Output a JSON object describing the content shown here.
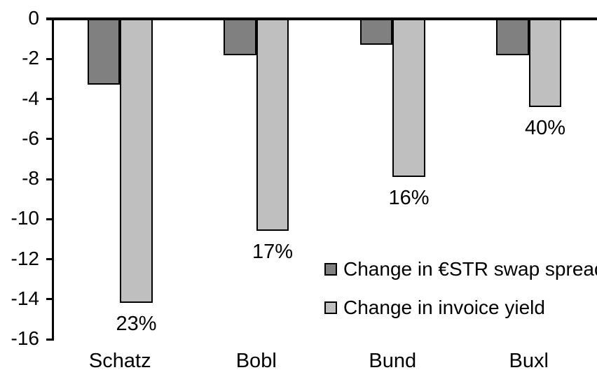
{
  "chart_data": {
    "type": "bar",
    "title": "",
    "xlabel": "",
    "ylabel": "",
    "background": "#ffffff",
    "grid": false,
    "axis_color": "#000000",
    "bar_border_color": "#000000",
    "categories": [
      "Schatz",
      "Bobl",
      "Bund",
      "Buxl"
    ],
    "series": [
      {
        "name": "Change in €STR swap spread",
        "color": "#808080",
        "values": [
          -3.3,
          -1.8,
          -1.3,
          -1.8
        ]
      },
      {
        "name": "Change in invoice yield",
        "color": "#bfbfbf",
        "values": [
          -14.2,
          -10.6,
          -7.9,
          -4.4
        ],
        "data_labels": [
          "23%",
          "17%",
          "16%",
          "40%"
        ]
      }
    ],
    "ylim": [
      -16,
      0
    ],
    "yticks": [
      0,
      -2,
      -4,
      -6,
      -8,
      -10,
      -12,
      -14,
      -16
    ],
    "ytick_labels": [
      "0",
      "-2",
      "-4",
      "-6",
      "-8",
      "-10",
      "-12",
      "-14",
      "-16"
    ],
    "legend_position": "inside-right-middle"
  }
}
